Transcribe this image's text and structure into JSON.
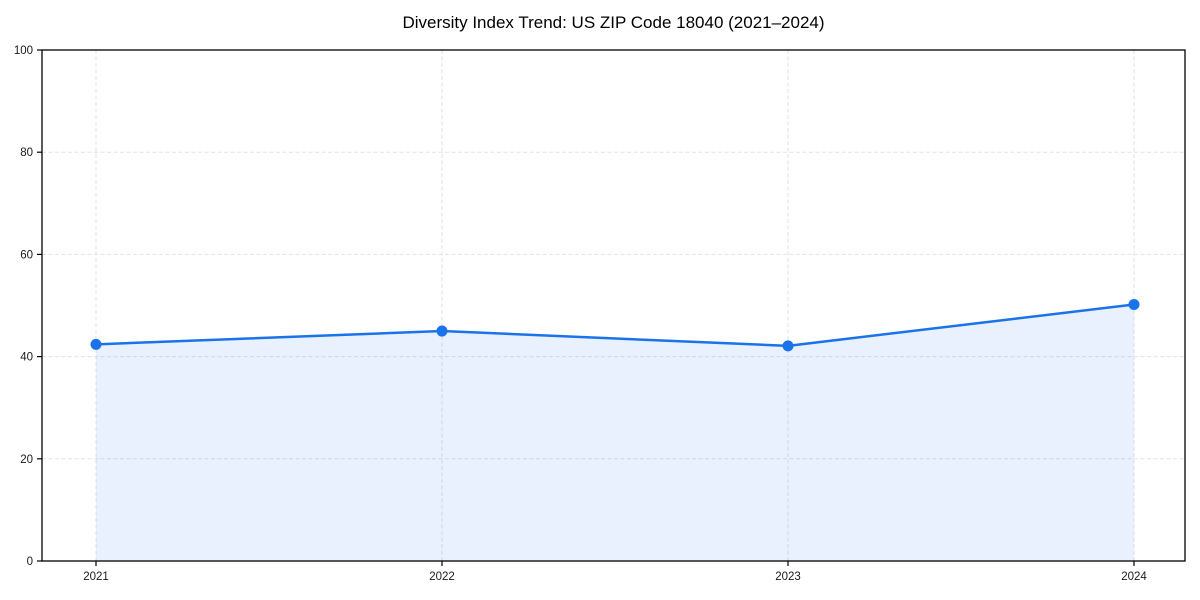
{
  "chart_data": {
    "type": "area",
    "title": "Diversity Index Trend: US ZIP Code 18040 (2021–2024)",
    "categories": [
      "2021",
      "2022",
      "2023",
      "2024"
    ],
    "series": [
      {
        "name": "Diversity Index",
        "values": [
          42.4,
          45.0,
          42.1,
          50.2
        ]
      }
    ],
    "xlabel": "",
    "ylabel": "",
    "ylim": [
      0,
      100
    ],
    "yticks": [
      0,
      20,
      40,
      60,
      80,
      100
    ],
    "grid": "dashed, both axes",
    "legend_position": "none",
    "colors": {
      "line": "#1a73e8",
      "marker": "#1a73e8",
      "fill": "rgba(26,115,232,0.10)",
      "grid": "#e2e2e2",
      "spine": "#000000",
      "tick_label": "#1a1a1a",
      "title": "#000000"
    }
  }
}
